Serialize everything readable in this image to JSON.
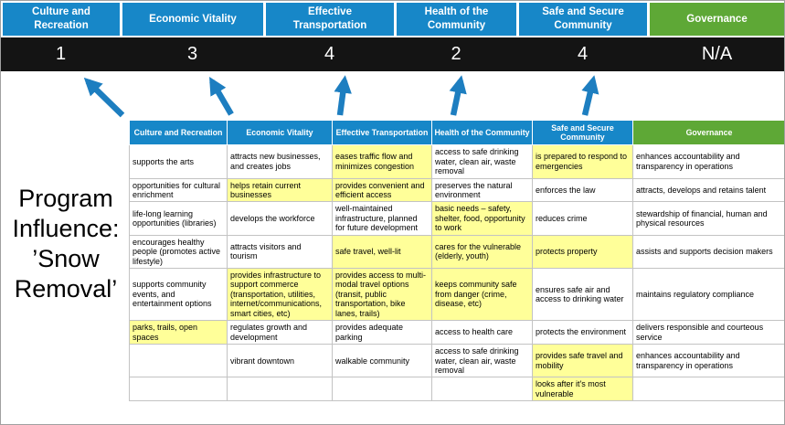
{
  "title": "Program Influence: ’Snow Removal’",
  "colors": {
    "pillar_blue": "#1787c8",
    "governance_green": "#5ea836",
    "score_band_bg": "#141414",
    "highlight_yellow": "#ffff99",
    "arrow_blue": "#1d7ec0",
    "table_border": "#c3c3c3"
  },
  "columns": [
    {
      "label": "Culture and Recreation",
      "score": "1",
      "theme": "blue",
      "items": [
        {
          "text": "supports the arts",
          "highlight": false
        },
        {
          "text": "opportunities for cultural enrichment",
          "highlight": false
        },
        {
          "text": "life-long learning opportunities (libraries)",
          "highlight": false
        },
        {
          "text": "encourages healthy people (promotes active lifestyle)",
          "highlight": false
        },
        {
          "text": "supports community events, and entertainment options",
          "highlight": false
        },
        {
          "text": "parks, trails, open spaces",
          "highlight": true
        },
        {
          "text": "",
          "highlight": false
        },
        {
          "text": "",
          "highlight": false
        }
      ]
    },
    {
      "label": "Economic Vitality",
      "score": "3",
      "theme": "blue",
      "items": [
        {
          "text": "attracts new businesses, and creates jobs",
          "highlight": false
        },
        {
          "text": "helps retain current businesses",
          "highlight": true
        },
        {
          "text": "develops the workforce",
          "highlight": false
        },
        {
          "text": "attracts visitors and tourism",
          "highlight": false
        },
        {
          "text": "provides infrastructure to support commerce (transportation, utilities, internet/communications, smart cities, etc)",
          "highlight": true
        },
        {
          "text": "regulates growth and development",
          "highlight": false
        },
        {
          "text": "vibrant downtown",
          "highlight": false
        },
        {
          "text": "",
          "highlight": false
        }
      ]
    },
    {
      "label": "Effective Transportation",
      "score": "4",
      "theme": "blue",
      "items": [
        {
          "text": "eases traffic flow and minimizes congestion",
          "highlight": true
        },
        {
          "text": "provides convenient and efficient access",
          "highlight": true
        },
        {
          "text": "well-maintained infrastructure, planned for future development",
          "highlight": false
        },
        {
          "text": "safe travel, well-lit",
          "highlight": true
        },
        {
          "text": "provides access to multi-modal travel options (transit, public transportation, bike lanes, trails)",
          "highlight": true
        },
        {
          "text": "provides adequate parking",
          "highlight": false
        },
        {
          "text": "walkable community",
          "highlight": false
        },
        {
          "text": "",
          "highlight": false
        }
      ]
    },
    {
      "label": "Health of the Community",
      "score": "2",
      "theme": "blue",
      "items": [
        {
          "text": "access to safe drinking water, clean air, waste removal",
          "highlight": false
        },
        {
          "text": "preserves the natural environment",
          "highlight": false
        },
        {
          "text": "basic needs – safety, shelter, food, opportunity to work",
          "highlight": true
        },
        {
          "text": "cares for the vulnerable (elderly, youth)",
          "highlight": true
        },
        {
          "text": "keeps community safe from danger (crime, disease, etc)",
          "highlight": true
        },
        {
          "text": "access to health care",
          "highlight": false
        },
        {
          "text": "access to safe drinking water, clean air, waste removal",
          "highlight": false
        },
        {
          "text": "",
          "highlight": false
        }
      ]
    },
    {
      "label": "Safe and Secure Community",
      "score": "4",
      "theme": "blue",
      "items": [
        {
          "text": "is prepared to respond to emergencies",
          "highlight": true
        },
        {
          "text": "enforces the law",
          "highlight": false
        },
        {
          "text": "reduces crime",
          "highlight": false
        },
        {
          "text": "protects property",
          "highlight": true
        },
        {
          "text": "ensures safe air and access to drinking water",
          "highlight": false
        },
        {
          "text": "protects the environment",
          "highlight": false
        },
        {
          "text": "provides safe travel and mobility",
          "highlight": true
        },
        {
          "text": "looks after it's most vulnerable",
          "highlight": true
        }
      ]
    },
    {
      "label": "Governance",
      "score": "N/A",
      "theme": "green",
      "items": [
        {
          "text": "enhances accountability and transparency in operations",
          "highlight": false
        },
        {
          "text": "attracts, develops and retains talent",
          "highlight": false
        },
        {
          "text": "stewardship of financial, human and physical resources",
          "highlight": false
        },
        {
          "text": "assists and supports decision makers",
          "highlight": false
        },
        {
          "text": "maintains regulatory compliance",
          "highlight": false
        },
        {
          "text": "delivers responsible and courteous service",
          "highlight": false
        },
        {
          "text": "enhances accountability and transparency in operations",
          "highlight": false
        },
        {
          "text": "",
          "highlight": false
        }
      ]
    }
  ]
}
